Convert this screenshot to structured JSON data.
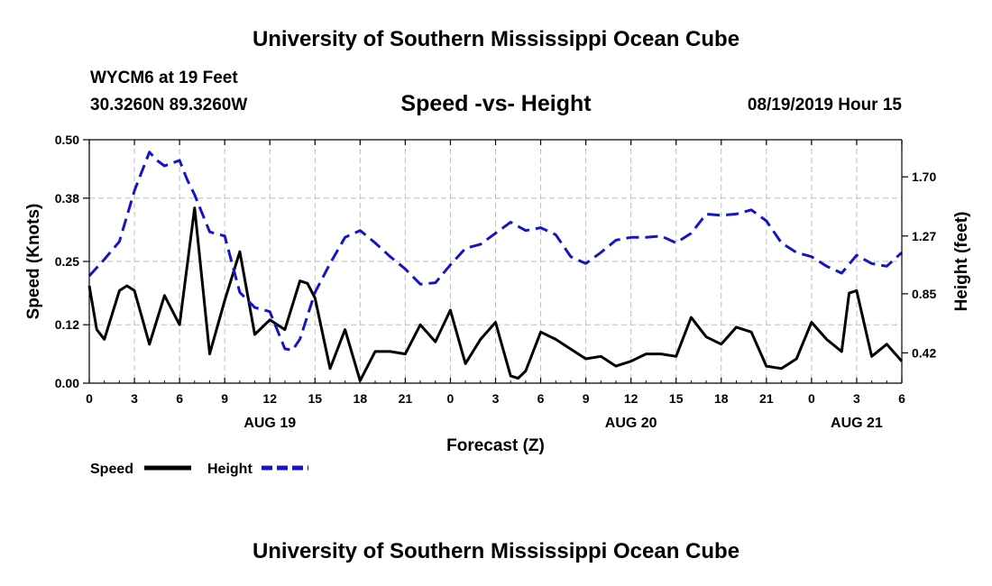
{
  "header": {
    "title": "University of Southern Mississippi Ocean Cube",
    "station": "WYCM6 at 19 Feet",
    "coords": "30.3260N 89.3260W",
    "subtitle": "Speed -vs- Height",
    "timestamp": "08/19/2019 Hour 15"
  },
  "footer": {
    "title": "University of Southern Mississippi Ocean Cube"
  },
  "colors": {
    "speed": "#000000",
    "height": "#1515c8",
    "grid": "#bbbbbb"
  },
  "chart_data": {
    "type": "line",
    "xlabel": "Forecast (Z)",
    "ylabel_left": "Speed (Knots)",
    "ylabel_right": "Height (feet)",
    "x_range": [
      0,
      54
    ],
    "left_ylim": [
      0,
      0.5
    ],
    "right_ylim": [
      0.2,
      1.97
    ],
    "x_ticks": [
      0,
      3,
      6,
      9,
      12,
      15,
      18,
      21,
      24,
      27,
      30,
      33,
      36,
      39,
      42,
      45,
      48,
      51,
      54
    ],
    "x_tick_labels": [
      "0",
      "3",
      "6",
      "9",
      "12",
      "15",
      "18",
      "21",
      "0",
      "3",
      "6",
      "9",
      "12",
      "15",
      "18",
      "21",
      "0",
      "3",
      "6"
    ],
    "date_labels": [
      {
        "x": 12,
        "text": "AUG 19"
      },
      {
        "x": 36,
        "text": "AUG 20"
      },
      {
        "x": 51,
        "text": "AUG 21"
      }
    ],
    "left_ticks": [
      0.0,
      0.12,
      0.25,
      0.38,
      0.5
    ],
    "left_tick_labels": [
      "0.00",
      "0.12",
      "0.25",
      "0.38",
      "0.50"
    ],
    "right_ticks": [
      0.42,
      0.85,
      1.27,
      1.7
    ],
    "right_tick_labels": [
      "0.42",
      "0.85",
      "1.27",
      "1.70"
    ],
    "grid": true,
    "legend": [
      {
        "name": "Speed",
        "style": "solid"
      },
      {
        "name": "Height",
        "style": "dashed"
      }
    ],
    "series": [
      {
        "name": "Speed",
        "axis": "left",
        "style": "solid",
        "x": [
          0,
          0.5,
          1,
          2,
          2.5,
          3,
          4,
          5,
          6,
          7,
          8,
          9,
          10,
          11,
          12,
          13,
          14,
          14.5,
          15,
          16,
          17,
          18,
          19,
          20,
          21,
          22,
          23,
          24,
          25,
          26,
          27,
          27.5,
          28,
          28.5,
          29,
          30,
          31,
          32,
          33,
          34,
          35,
          36,
          37,
          38,
          39,
          40,
          41,
          42,
          43,
          44,
          45,
          46,
          47,
          48,
          49,
          50,
          50.5,
          51,
          52,
          53,
          54
        ],
        "values": [
          0.2,
          0.11,
          0.09,
          0.19,
          0.2,
          0.19,
          0.08,
          0.18,
          0.12,
          0.36,
          0.06,
          0.17,
          0.27,
          0.1,
          0.13,
          0.11,
          0.21,
          0.205,
          0.175,
          0.03,
          0.11,
          0.005,
          0.065,
          0.065,
          0.06,
          0.12,
          0.085,
          0.15,
          0.04,
          0.09,
          0.125,
          0.07,
          0.015,
          0.01,
          0.025,
          0.105,
          0.09,
          0.07,
          0.05,
          0.055,
          0.035,
          0.045,
          0.06,
          0.06,
          0.055,
          0.135,
          0.095,
          0.08,
          0.115,
          0.105,
          0.035,
          0.03,
          0.05,
          0.125,
          0.09,
          0.065,
          0.185,
          0.19,
          0.055,
          0.08,
          0.045
        ]
      },
      {
        "name": "Height",
        "axis": "right",
        "style": "dashed",
        "x": [
          0,
          1,
          2,
          3,
          4,
          4.5,
          5,
          6,
          6.5,
          7,
          8,
          9,
          10,
          11,
          12,
          13,
          13.5,
          14,
          15,
          16,
          17,
          18,
          19,
          20,
          21,
          22,
          23,
          24,
          25,
          26,
          27,
          28,
          29,
          30,
          31,
          32,
          33,
          34,
          35,
          36,
          37,
          38,
          39,
          40,
          41,
          42,
          43,
          44,
          45,
          46,
          47,
          48,
          49,
          50,
          51,
          52,
          53,
          54
        ],
        "values": [
          0.98,
          1.1,
          1.23,
          1.6,
          1.88,
          1.82,
          1.78,
          1.82,
          1.68,
          1.57,
          1.3,
          1.27,
          0.86,
          0.75,
          0.72,
          0.45,
          0.44,
          0.52,
          0.86,
          1.07,
          1.26,
          1.31,
          1.22,
          1.12,
          1.03,
          0.92,
          0.93,
          1.06,
          1.18,
          1.21,
          1.29,
          1.37,
          1.31,
          1.33,
          1.28,
          1.12,
          1.07,
          1.15,
          1.24,
          1.26,
          1.26,
          1.27,
          1.22,
          1.29,
          1.43,
          1.42,
          1.43,
          1.46,
          1.38,
          1.22,
          1.15,
          1.12,
          1.05,
          1.0,
          1.13,
          1.07,
          1.05,
          1.15
        ]
      }
    ]
  }
}
